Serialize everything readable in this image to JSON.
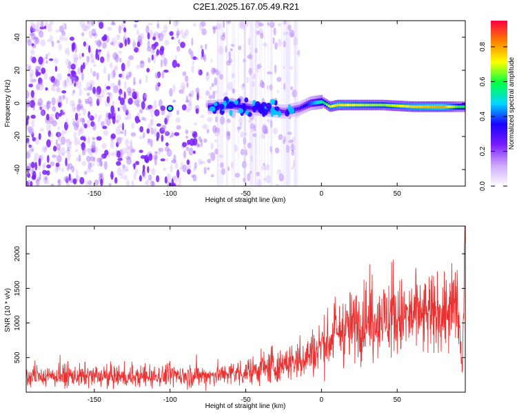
{
  "title": "C2E1.2025.167.05.49.R21",
  "chart_data": [
    {
      "type": "heatmap",
      "xlabel": "Height of straight line (km)",
      "ylabel": "Frequency (Hz)",
      "xlim": [
        -195,
        95
      ],
      "ylim": [
        -50,
        50
      ],
      "xticks": [
        -150,
        -100,
        -50,
        0,
        50
      ],
      "yticks": [
        -40,
        -20,
        0,
        20,
        40
      ],
      "colorbar": {
        "label": "Normalized spectral amplitude",
        "range": [
          0.0,
          0.95
        ],
        "ticks": [
          0.0,
          0.2,
          0.4,
          0.6,
          0.8
        ],
        "colors": [
          "#ffffff",
          "#cfa8ff",
          "#7a1cff",
          "#1a00ff",
          "#00d8ff",
          "#00ff40",
          "#ffff00",
          "#ff8000",
          "#ff0040"
        ]
      },
      "ridge": [
        {
          "x": -100,
          "y": -3,
          "amp": 0.45
        },
        {
          "x": -70,
          "y": -2,
          "amp": 0.3
        },
        {
          "x": -60,
          "y": -1,
          "amp": 0.35
        },
        {
          "x": -45,
          "y": -3,
          "amp": 0.3
        },
        {
          "x": -35,
          "y": -4,
          "amp": 0.3
        },
        {
          "x": -25,
          "y": -5,
          "amp": 0.25
        },
        {
          "x": -15,
          "y": -3,
          "amp": 0.3
        },
        {
          "x": -8,
          "y": 0,
          "amp": 0.4
        },
        {
          "x": 0,
          "y": 1,
          "amp": 0.55
        },
        {
          "x": 5,
          "y": -2,
          "amp": 0.7
        },
        {
          "x": 10,
          "y": -1,
          "amp": 0.75
        },
        {
          "x": 20,
          "y": -1,
          "amp": 0.7
        },
        {
          "x": 40,
          "y": -1,
          "amp": 0.65
        },
        {
          "x": 60,
          "y": -2,
          "amp": 0.75
        },
        {
          "x": 80,
          "y": -2,
          "amp": 0.8
        },
        {
          "x": 90,
          "y": -2,
          "amp": 0.6
        }
      ]
    },
    {
      "type": "line",
      "xlabel": "Height of straight line (km)",
      "ylabel": "SNR (10 * v/v)",
      "xlim": [
        -195,
        95
      ],
      "ylim": [
        0,
        2400
      ],
      "xticks": [
        -150,
        -100,
        -50,
        0,
        50
      ],
      "yticks": [
        500,
        1000,
        1500,
        2000
      ],
      "color": "#e83232",
      "series": [
        {
          "x": [
            -195,
            -180,
            -160,
            -140,
            -120,
            -100,
            -80,
            -60,
            -50,
            -40,
            -30,
            -20,
            -10,
            0,
            10,
            20,
            30,
            40,
            50,
            60,
            70,
            80,
            85,
            90,
            93,
            95
          ],
          "y": [
            220,
            230,
            230,
            220,
            220,
            240,
            240,
            260,
            290,
            330,
            370,
            420,
            520,
            660,
            830,
            950,
            1030,
            1060,
            1060,
            1080,
            1090,
            1100,
            1150,
            1250,
            300,
            2350
          ]
        }
      ]
    }
  ]
}
